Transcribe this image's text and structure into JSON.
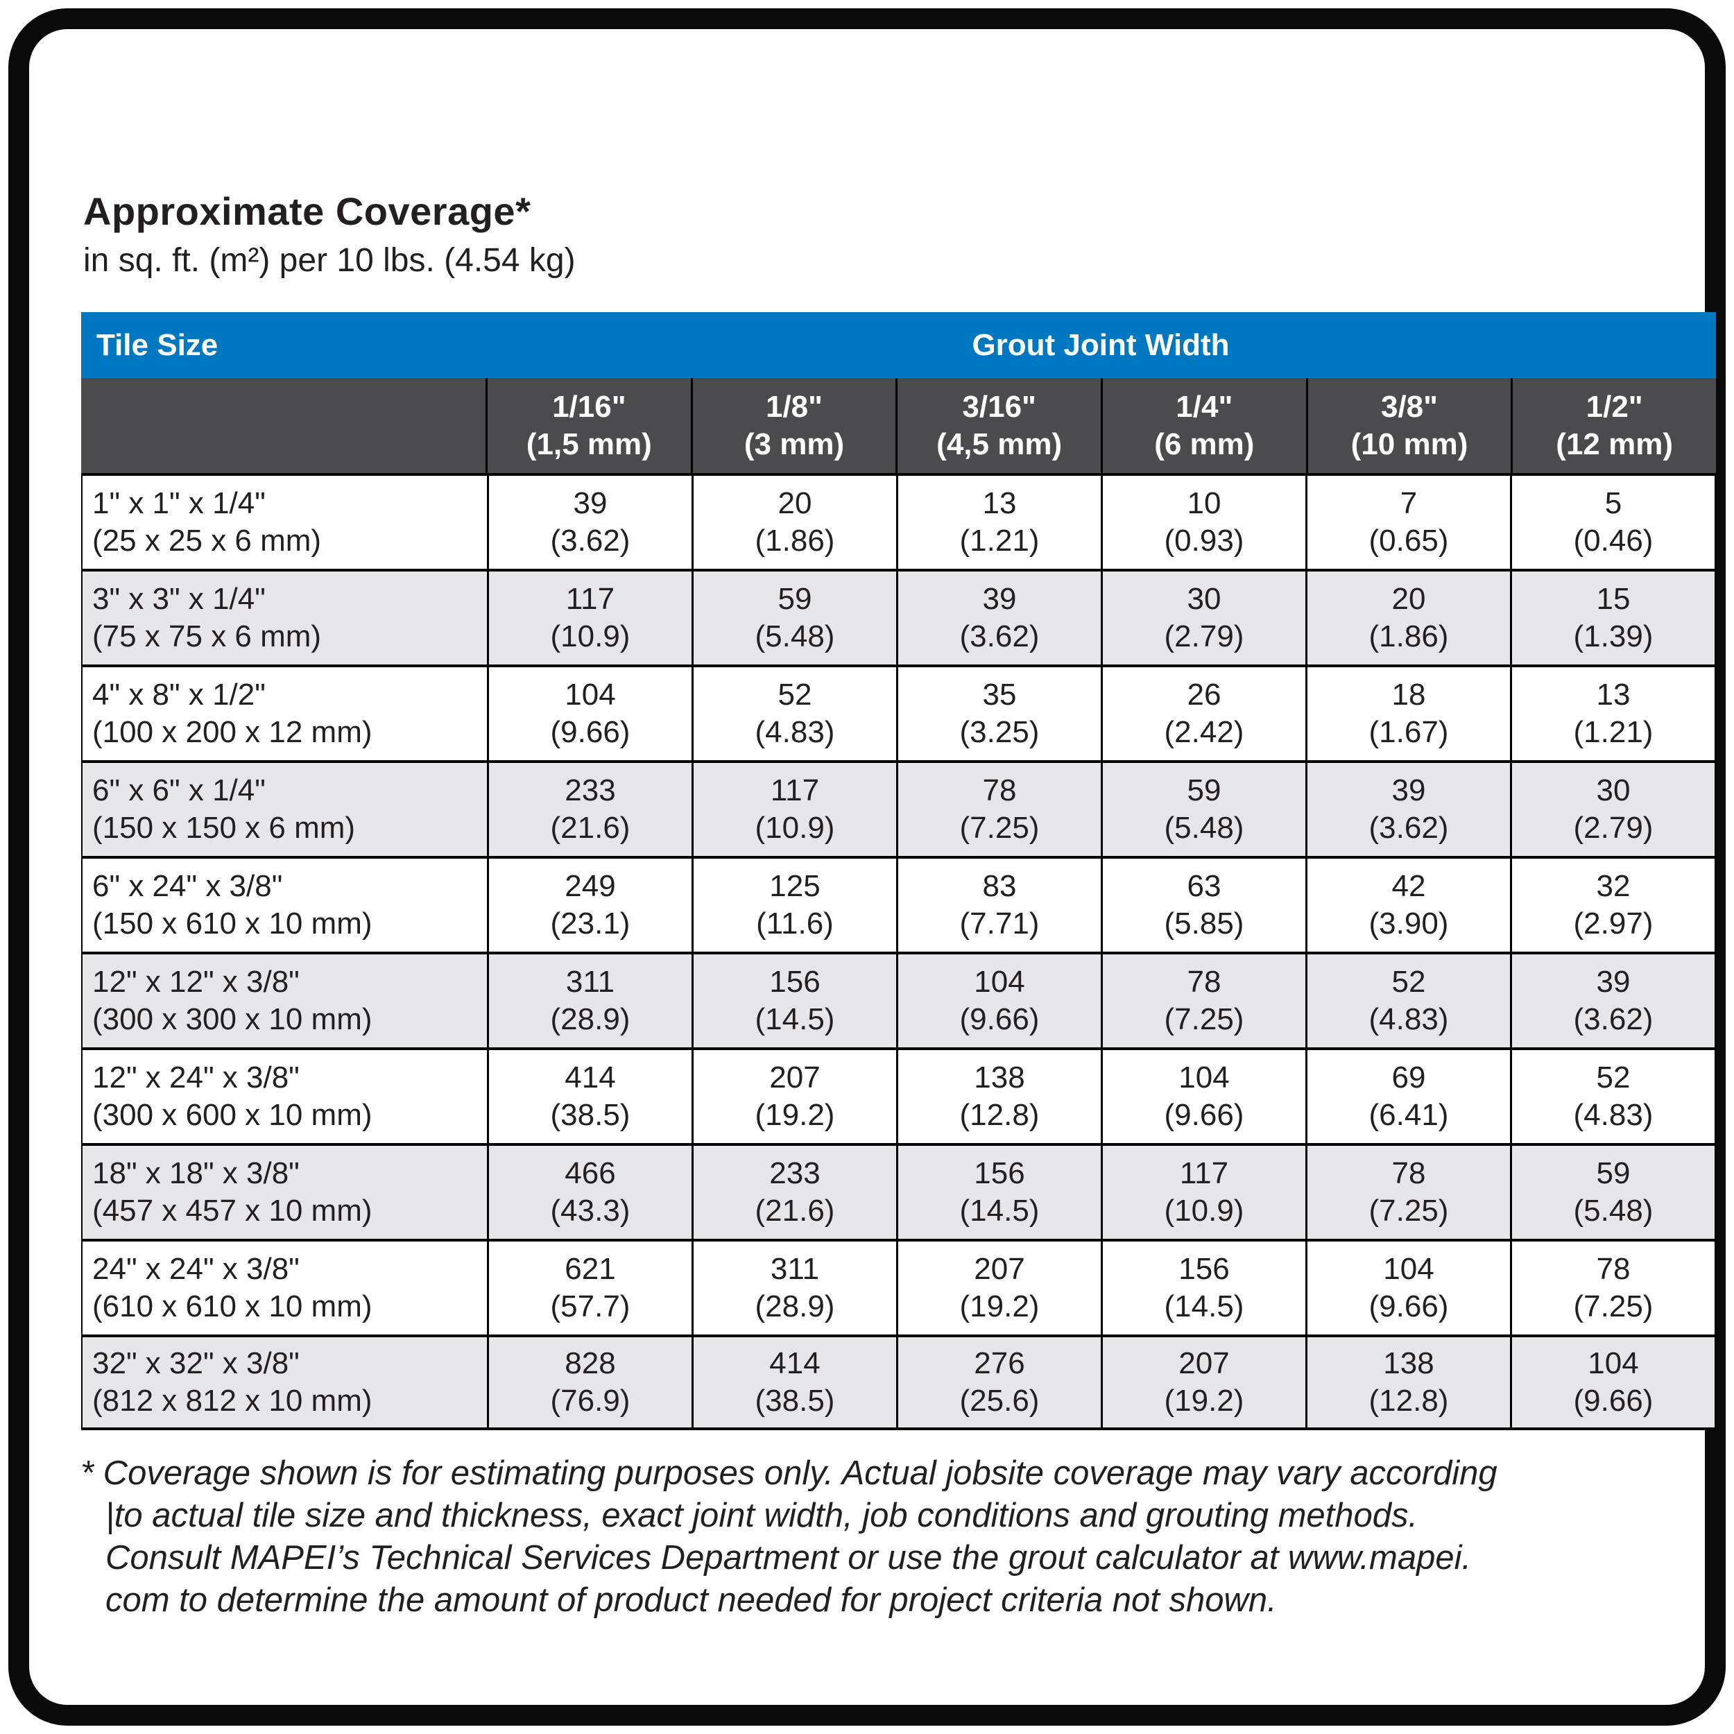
{
  "title": "Approximate Coverage*",
  "subtitle": "in sq. ft. (m²) per 10 lbs. (4.54 kg)",
  "colors": {
    "header_blue": "#0078C1",
    "subheader_gray": "#4B4B4D",
    "alt_row_gray": "#E6E6E8",
    "border_black": "#000000",
    "text": "#231f20"
  },
  "table": {
    "tile_size_label": "Tile Size",
    "grout_joint_width_label": "Grout Joint Width",
    "columns": [
      {
        "size": "1/16\"",
        "mm": "(1,5 mm)"
      },
      {
        "size": "1/8\"",
        "mm": "(3 mm)"
      },
      {
        "size": "3/16\"",
        "mm": "(4,5 mm)"
      },
      {
        "size": "1/4\"",
        "mm": "(6 mm)"
      },
      {
        "size": "3/8\"",
        "mm": "(10 mm)"
      },
      {
        "size": "1/2\"",
        "mm": "(12 mm)"
      }
    ],
    "rows": [
      {
        "size": "1\" x 1\" x 1/4\"",
        "metric": "(25 x 25 x 6 mm)",
        "values": [
          [
            "39",
            "(3.62)"
          ],
          [
            "20",
            "(1.86)"
          ],
          [
            "13",
            "(1.21)"
          ],
          [
            "10",
            "(0.93)"
          ],
          [
            "7",
            "(0.65)"
          ],
          [
            "5",
            "(0.46)"
          ]
        ]
      },
      {
        "size": "3\" x 3\" x 1/4\"",
        "metric": "(75 x 75 x 6 mm)",
        "values": [
          [
            "117",
            "(10.9)"
          ],
          [
            "59",
            "(5.48)"
          ],
          [
            "39",
            "(3.62)"
          ],
          [
            "30",
            "(2.79)"
          ],
          [
            "20",
            "(1.86)"
          ],
          [
            "15",
            "(1.39)"
          ]
        ]
      },
      {
        "size": "4\" x 8\" x 1/2\"",
        "metric": "(100 x 200 x 12 mm)",
        "values": [
          [
            "104",
            "(9.66)"
          ],
          [
            "52",
            "(4.83)"
          ],
          [
            "35",
            "(3.25)"
          ],
          [
            "26",
            "(2.42)"
          ],
          [
            "18",
            "(1.67)"
          ],
          [
            "13",
            "(1.21)"
          ]
        ]
      },
      {
        "size": "6\" x 6\" x 1/4\"",
        "metric": "(150 x 150 x 6 mm)",
        "values": [
          [
            "233",
            "(21.6)"
          ],
          [
            "117",
            "(10.9)"
          ],
          [
            "78",
            "(7.25)"
          ],
          [
            "59",
            "(5.48)"
          ],
          [
            "39",
            "(3.62)"
          ],
          [
            "30",
            "(2.79)"
          ]
        ]
      },
      {
        "size": "6\" x 24\" x 3/8\"",
        "metric": "(150 x 610 x 10 mm)",
        "values": [
          [
            "249",
            "(23.1)"
          ],
          [
            "125",
            "(11.6)"
          ],
          [
            "83",
            "(7.71)"
          ],
          [
            "63",
            "(5.85)"
          ],
          [
            "42",
            "(3.90)"
          ],
          [
            "32",
            "(2.97)"
          ]
        ]
      },
      {
        "size": "12\" x 12\" x 3/8\"",
        "metric": "(300 x 300 x 10 mm)",
        "values": [
          [
            "311",
            "(28.9)"
          ],
          [
            "156",
            "(14.5)"
          ],
          [
            "104",
            "(9.66)"
          ],
          [
            "78",
            "(7.25)"
          ],
          [
            "52",
            "(4.83)"
          ],
          [
            "39",
            "(3.62)"
          ]
        ]
      },
      {
        "size": "12\" x 24\" x 3/8\"",
        "metric": "(300 x 600 x 10 mm)",
        "values": [
          [
            "414",
            "(38.5)"
          ],
          [
            "207",
            "(19.2)"
          ],
          [
            "138",
            "(12.8)"
          ],
          [
            "104",
            "(9.66)"
          ],
          [
            "69",
            "(6.41)"
          ],
          [
            "52",
            "(4.83)"
          ]
        ]
      },
      {
        "size": "18\" x 18\" x 3/8\"",
        "metric": "(457 x 457 x 10 mm)",
        "values": [
          [
            "466",
            "(43.3)"
          ],
          [
            "233",
            "(21.6)"
          ],
          [
            "156",
            "(14.5)"
          ],
          [
            "117",
            "(10.9)"
          ],
          [
            "78",
            "(7.25)"
          ],
          [
            "59",
            "(5.48)"
          ]
        ]
      },
      {
        "size": "24\" x 24\" x 3/8\"",
        "metric": "(610 x 610 x 10 mm)",
        "values": [
          [
            "621",
            "(57.7)"
          ],
          [
            "311",
            "(28.9)"
          ],
          [
            "207",
            "(19.2)"
          ],
          [
            "156",
            "(14.5)"
          ],
          [
            "104",
            "(9.66)"
          ],
          [
            "78",
            "(7.25)"
          ]
        ]
      },
      {
        "size": "32\" x 32\" x 3/8\"",
        "metric": "(812 x 812 x 10 mm)",
        "values": [
          [
            "828",
            "(76.9)"
          ],
          [
            "414",
            "(38.5)"
          ],
          [
            "276",
            "(25.6)"
          ],
          [
            "207",
            "(19.2)"
          ],
          [
            "138",
            "(12.8)"
          ],
          [
            "104",
            "(9.66)"
          ]
        ]
      }
    ]
  },
  "footnote": {
    "lines": [
      "* Coverage shown is for estimating purposes only. Actual jobsite coverage may vary according",
      "|to actual tile size and thickness, exact joint width, job conditions and grouting methods.",
      "Consult MAPEI’s Technical Services Department or use the grout calculator at www.mapei.",
      "com to determine the amount of product needed for project criteria not shown."
    ]
  }
}
